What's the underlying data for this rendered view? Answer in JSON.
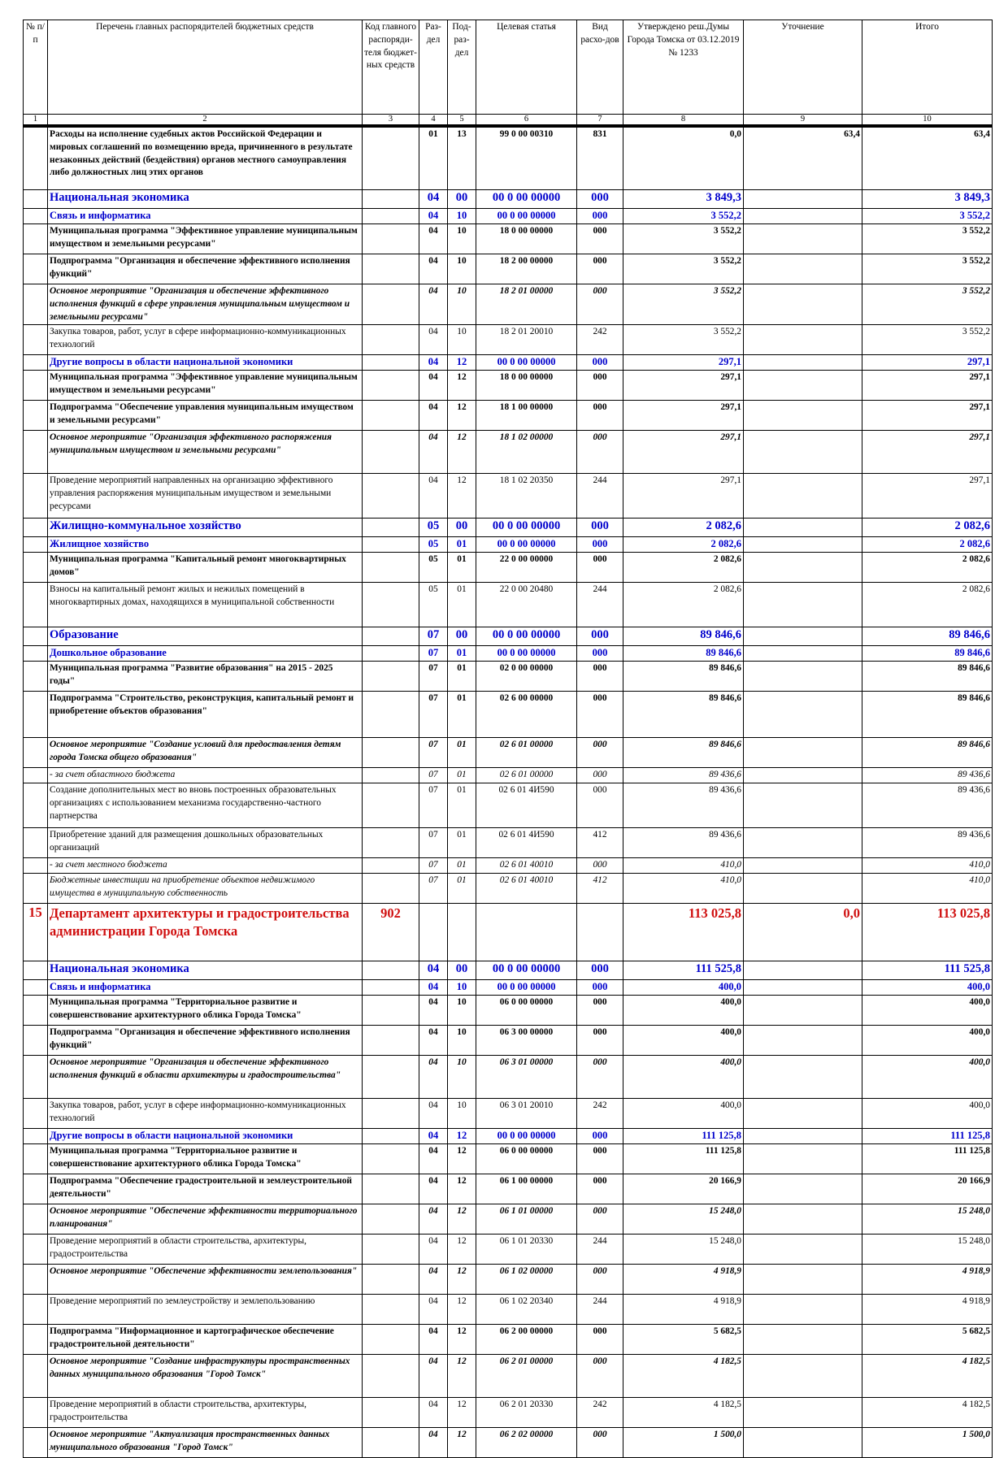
{
  "header": {
    "c1": "№ п/п",
    "c2": "Перечень главных распорядителей бюджетных средств",
    "c3": "Код главного распоряди-теля бюджет-ных средств",
    "c4": "Раз-дел",
    "c5": "Под-раз-дел",
    "c6": "Целевая статья",
    "c7": "Вид расхо-дов",
    "c8": "Утверждено реш.Думы Города Томска от 03.12.2019 № 1233",
    "c9": "Уточнение",
    "c10": "Итого"
  },
  "column_numbers": [
    "1",
    "2",
    "3",
    "4",
    "5",
    "6",
    "7",
    "8",
    "9",
    "10"
  ],
  "rows": [
    {
      "s": "b",
      "h": 74,
      "n": "",
      "name": "Расходы на исполнение судебных актов Российской Федерации и мировых соглашений по возмещению вреда, причиненного в результате незаконных действий (бездействия) органов местного самоуправления либо должностных лиц этих органов",
      "code": "",
      "r": "01",
      "p": "13",
      "cs": "99 0 00 00310",
      "v": "831",
      "a": "0,0",
      "u": "63,4",
      "t": "63,4"
    },
    {
      "s": "sec",
      "h": 20,
      "n": "",
      "name": "Национальная экономика",
      "code": "",
      "r": "04",
      "p": "00",
      "cs": "00 0 00 00000",
      "v": "000",
      "a": "3 849,3",
      "u": "",
      "t": "3 849,3"
    },
    {
      "s": "sub",
      "h": 16,
      "n": "",
      "name": "Связь и информатика",
      "code": "",
      "r": "04",
      "p": "10",
      "cs": "00 0 00 00000",
      "v": "000",
      "a": "3 552,2",
      "u": "",
      "t": "3 552,2"
    },
    {
      "s": "b",
      "h": 34,
      "n": "",
      "name": "Муниципальная программа \"Эффективное управление муниципальным имуществом и земельными ресурсами\"",
      "code": "",
      "r": "04",
      "p": "10",
      "cs": "18 0 00 00000",
      "v": "000",
      "a": "3 552,2",
      "u": "",
      "t": "3 552,2"
    },
    {
      "s": "b",
      "h": 34,
      "n": "",
      "name": "Подпрограмма \"Организация и обеспечение эффективного исполнения функций\"",
      "code": "",
      "r": "04",
      "p": "10",
      "cs": "18 2 00 00000",
      "v": "000",
      "a": "3 552,2",
      "u": "",
      "t": "3 552,2"
    },
    {
      "s": "bi",
      "h": 42,
      "n": "",
      "name": "Основное мероприятие \"Организация и обеспечение эффективного исполнения функций в сфере управления муниципальным имуществом и земельными ресурсами\"",
      "code": "",
      "r": "04",
      "p": "10",
      "cs": "18 2 01 00000",
      "v": "000",
      "a": "3 552,2",
      "u": "",
      "t": "3 552,2"
    },
    {
      "s": "",
      "h": 34,
      "n": "",
      "name": "Закупка товаров, работ, услуг в сфере информационно-коммуникационных технологий",
      "code": "",
      "r": "04",
      "p": "10",
      "cs": "18 2 01 20010",
      "v": "242",
      "a": "3 552,2",
      "u": "",
      "t": "3 552,2"
    },
    {
      "s": "sub",
      "h": 16,
      "n": "",
      "name": "Другие вопросы в области национальной экономики",
      "code": "",
      "r": "04",
      "p": "12",
      "cs": "00 0 00 00000",
      "v": "000",
      "a": "297,1",
      "u": "",
      "t": "297,1"
    },
    {
      "s": "b",
      "h": 34,
      "n": "",
      "name": "Муниципальная программа \"Эффективное управление муниципальным имуществом и земельными ресурсами\"",
      "code": "",
      "r": "04",
      "p": "12",
      "cs": "18 0 00 00000",
      "v": "000",
      "a": "297,1",
      "u": "",
      "t": "297,1"
    },
    {
      "s": "b",
      "h": 34,
      "n": "",
      "name": "Подпрограмма \"Обеспечение управления муниципальным имуществом и земельными ресурсами\"",
      "code": "",
      "r": "04",
      "p": "12",
      "cs": "18 1 00 00000",
      "v": "000",
      "a": "297,1",
      "u": "",
      "t": "297,1"
    },
    {
      "s": "bi",
      "h": 50,
      "n": "",
      "name": "Основное мероприятие \"Организация эффективного распоряжения муниципальным имуществом и земельными ресурсами\"",
      "code": "",
      "r": "04",
      "p": "12",
      "cs": "18 1 02 00000",
      "v": "000",
      "a": "297,1",
      "u": "",
      "t": "297,1"
    },
    {
      "s": "",
      "h": 52,
      "n": "",
      "name": "Проведение мероприятий направленных на организацию эффективного управления распоряжения муниципальным имуществом и земельными ресурсами",
      "code": "",
      "r": "04",
      "p": "12",
      "cs": "18 1 02 20350",
      "v": "244",
      "a": "297,1",
      "u": "",
      "t": "297,1"
    },
    {
      "s": "sec",
      "h": 20,
      "n": "",
      "name": "Жилищно-коммунальное хозяйство",
      "code": "",
      "r": "05",
      "p": "00",
      "cs": "00 0 00 00000",
      "v": "000",
      "a": "2 082,6",
      "u": "",
      "t": "2 082,6"
    },
    {
      "s": "sub",
      "h": 16,
      "n": "",
      "name": "Жилищное хозяйство",
      "code": "",
      "r": "05",
      "p": "01",
      "cs": "00 0 00 00000",
      "v": "000",
      "a": "2 082,6",
      "u": "",
      "t": "2 082,6"
    },
    {
      "s": "b",
      "h": 34,
      "n": "",
      "name": "Муниципальная программа \"Капитальный ремонт многоквартирных домов\"",
      "code": "",
      "r": "05",
      "p": "01",
      "cs": "22 0 00 00000",
      "v": "000",
      "a": "2 082,6",
      "u": "",
      "t": "2 082,6"
    },
    {
      "s": "",
      "h": 52,
      "n": "",
      "name": "Взносы на капитальный ремонт жилых и нежилых помещений в многоквартирных домах, находящихся в муниципальной собственности",
      "code": "",
      "r": "05",
      "p": "01",
      "cs": "22 0 00 20480",
      "v": "244",
      "a": "2 082,6",
      "u": "",
      "t": "2 082,6"
    },
    {
      "s": "sec",
      "h": 20,
      "n": "",
      "name": "Образование",
      "code": "",
      "r": "07",
      "p": "00",
      "cs": "00 0 00 00000",
      "v": "000",
      "a": "89 846,6",
      "u": "",
      "t": "89 846,6"
    },
    {
      "s": "sub",
      "h": 16,
      "n": "",
      "name": "Дошкольное образование",
      "code": "",
      "r": "07",
      "p": "01",
      "cs": "00 0 00 00000",
      "v": "000",
      "a": "89 846,6",
      "u": "",
      "t": "89 846,6"
    },
    {
      "s": "b",
      "h": 34,
      "n": "",
      "name": "Муниципальная программа \"Развитие образования\" на 2015 - 2025 годы\"",
      "code": "",
      "r": "07",
      "p": "01",
      "cs": "02 0 00 00000",
      "v": "000",
      "a": "89 846,6",
      "u": "",
      "t": "89 846,6"
    },
    {
      "s": "b",
      "h": 54,
      "n": "",
      "name": "Подпрограмма \"Строительство, реконструкция, капитальный ремонт и приобретение объектов образования\"",
      "code": "",
      "r": "07",
      "p": "01",
      "cs": "02 6 00 00000",
      "v": "000",
      "a": "89 846,6",
      "u": "",
      "t": "89 846,6"
    },
    {
      "s": "bi",
      "h": 34,
      "n": "",
      "name": "Основное мероприятие \"Создание условий для предоставления детям города Томска общего образования\"",
      "code": "",
      "r": "07",
      "p": "01",
      "cs": "02 6 01 00000",
      "v": "000",
      "a": "89 846,6",
      "u": "",
      "t": "89 846,6"
    },
    {
      "s": "i",
      "h": 16,
      "n": "",
      "name": "- за счет областного бюджета",
      "code": "",
      "r": "07",
      "p": "01",
      "cs": "02 6 01 00000",
      "v": "000",
      "a": "89 436,6",
      "u": "",
      "t": "89 436,6"
    },
    {
      "s": "",
      "h": 52,
      "n": "",
      "name": "Создание дополнительных мест во вновь построенных образовательных организациях с использованием механизма государственно-частного партнерства",
      "code": "",
      "r": "07",
      "p": "01",
      "cs": "02 6 01 4И590",
      "v": "000",
      "a": "89 436,6",
      "u": "",
      "t": "89 436,6"
    },
    {
      "s": "",
      "h": 34,
      "n": "",
      "name": "Приобретение зданий для размещения дошкольных образовательных организаций",
      "code": "",
      "r": "07",
      "p": "01",
      "cs": "02 6 01 4И590",
      "v": "412",
      "a": "89 436,6",
      "u": "",
      "t": "89 436,6"
    },
    {
      "s": "i",
      "h": 16,
      "n": "",
      "name": "- за счет местного бюджета",
      "code": "",
      "r": "07",
      "p": "01",
      "cs": "02 6 01 40010",
      "v": "000",
      "a": "410,0",
      "u": "",
      "t": "410,0"
    },
    {
      "s": "i",
      "h": 34,
      "n": "",
      "name": "Бюджетные инвестиции на приобретение объектов недвижимого имущества в муниципальную собственность",
      "code": "",
      "r": "07",
      "p": "01",
      "cs": "02 6 01 40010",
      "v": "412",
      "a": "410,0",
      "u": "",
      "t": "410,0"
    },
    {
      "s": "dept",
      "h": 68,
      "n": "15",
      "name": "Департамент архитектуры и градостроительства администрации Города Томска",
      "code": "902",
      "r": "",
      "p": "",
      "cs": "",
      "v": "",
      "a": "113 025,8",
      "u": "0,0",
      "t": "113 025,8"
    },
    {
      "s": "sec",
      "h": 20,
      "n": "",
      "name": "Национальная экономика",
      "code": "",
      "r": "04",
      "p": "00",
      "cs": "00 0 00 00000",
      "v": "000",
      "a": "111 525,8",
      "u": "",
      "t": "111 525,8"
    },
    {
      "s": "sub",
      "h": 16,
      "n": "",
      "name": "Связь и информатика",
      "code": "",
      "r": "04",
      "p": "10",
      "cs": "00 0 00 00000",
      "v": "000",
      "a": "400,0",
      "u": "",
      "t": "400,0"
    },
    {
      "s": "b",
      "h": 34,
      "n": "",
      "name": "Муниципальная программа \"Территориальное развитие и совершенствование архитектурного облика Города Томска\"",
      "code": "",
      "r": "04",
      "p": "10",
      "cs": "06 0 00 00000",
      "v": "000",
      "a": "400,0",
      "u": "",
      "t": "400,0"
    },
    {
      "s": "b",
      "h": 34,
      "n": "",
      "name": "Подпрограмма \"Организация и обеспечение эффективного исполнения функций\"",
      "code": "",
      "r": "04",
      "p": "10",
      "cs": "06 3 00 00000",
      "v": "000",
      "a": "400,0",
      "u": "",
      "t": "400,0"
    },
    {
      "s": "bi",
      "h": 50,
      "n": "",
      "name": "Основное мероприятие \"Организация и обеспечение эффективного исполнения функций в области архитектуры и градостроительства\"",
      "code": "",
      "r": "04",
      "p": "10",
      "cs": "06 3 01 00000",
      "v": "000",
      "a": "400,0",
      "u": "",
      "t": "400,0"
    },
    {
      "s": "",
      "h": 34,
      "n": "",
      "name": "Закупка товаров, работ, услуг в сфере информационно-коммуникационных технологий",
      "code": "",
      "r": "04",
      "p": "10",
      "cs": "06 3 01 20010",
      "v": "242",
      "a": "400,0",
      "u": "",
      "t": "400,0"
    },
    {
      "s": "sub",
      "h": 16,
      "n": "",
      "name": "Другие вопросы в области национальной экономики",
      "code": "",
      "r": "04",
      "p": "12",
      "cs": "00 0 00 00000",
      "v": "000",
      "a": "111 125,8",
      "u": "",
      "t": "111 125,8"
    },
    {
      "s": "b",
      "h": 34,
      "n": "",
      "name": "Муниципальная программа \"Территориальное развитие и совершенствование архитектурного облика Города Томска\"",
      "code": "",
      "r": "04",
      "p": "12",
      "cs": "06 0 00 00000",
      "v": "000",
      "a": "111 125,8",
      "u": "",
      "t": "111 125,8"
    },
    {
      "s": "b",
      "h": 34,
      "n": "",
      "name": "Подпрограмма \"Обеспечение градостроительной и землеустроительной деятельности\"",
      "code": "",
      "r": "04",
      "p": "12",
      "cs": "06 1 00 00000",
      "v": "000",
      "a": "20 166,9",
      "u": "",
      "t": "20 166,9"
    },
    {
      "s": "bi",
      "h": 34,
      "n": "",
      "name": "Основное мероприятие \"Обеспечение эффективности территориального планирования\"",
      "code": "",
      "r": "04",
      "p": "12",
      "cs": "06 1 01 00000",
      "v": "000",
      "a": "15 248,0",
      "u": "",
      "t": "15 248,0"
    },
    {
      "s": "",
      "h": 34,
      "n": "",
      "name": "Проведение мероприятий в области строительства, архитектуры, градостроительства",
      "code": "",
      "r": "04",
      "p": "12",
      "cs": "06 1 01 20330",
      "v": "244",
      "a": "15 248,0",
      "u": "",
      "t": "15 248,0"
    },
    {
      "s": "bi",
      "h": 34,
      "n": "",
      "name": "Основное мероприятие \"Обеспечение эффективности землепользования\"",
      "code": "",
      "r": "04",
      "p": "12",
      "cs": "06 1 02 00000",
      "v": "000",
      "a": "4 918,9",
      "u": "",
      "t": "4 918,9"
    },
    {
      "s": "",
      "h": 34,
      "n": "",
      "name": "Проведение мероприятий по землеустройству и землепользованию",
      "code": "",
      "r": "04",
      "p": "12",
      "cs": "06 1 02 20340",
      "v": "244",
      "a": "4 918,9",
      "u": "",
      "t": "4 918,9"
    },
    {
      "s": "b",
      "h": 34,
      "n": "",
      "name": "Подпрограмма \"Информационное и картографическое обеспечение градостроительной деятельности\"",
      "code": "",
      "r": "04",
      "p": "12",
      "cs": "06 2 00 00000",
      "v": "000",
      "a": "5 682,5",
      "u": "",
      "t": "5 682,5"
    },
    {
      "s": "bi",
      "h": 50,
      "n": "",
      "name": "Основное мероприятие \"Создание инфраструктуры пространственных данных муниципального образования \"Город Томск\"",
      "code": "",
      "r": "04",
      "p": "12",
      "cs": "06 2 01 00000",
      "v": "000",
      "a": "4 182,5",
      "u": "",
      "t": "4 182,5"
    },
    {
      "s": "",
      "h": 34,
      "n": "",
      "name": "Проведение мероприятий в области строительства, архитектуры, градостроительства",
      "code": "",
      "r": "04",
      "p": "12",
      "cs": "06 2 01 20330",
      "v": "242",
      "a": "4 182,5",
      "u": "",
      "t": "4 182,5"
    },
    {
      "s": "bi",
      "h": 34,
      "n": "",
      "name": "Основное мероприятие \"Актуализация пространственных данных муниципального образования \"Город Томск\"",
      "code": "",
      "r": "04",
      "p": "12",
      "cs": "06 2 02 00000",
      "v": "000",
      "a": "1 500,0",
      "u": "",
      "t": "1 500,0"
    }
  ]
}
